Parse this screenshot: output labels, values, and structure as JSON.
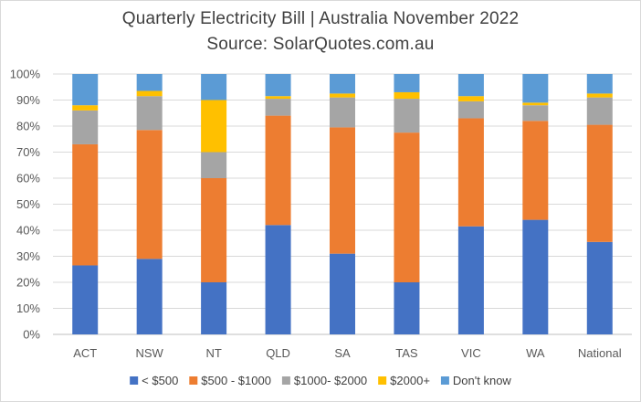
{
  "chart_data": {
    "type": "bar",
    "stacked": true,
    "title": "Quarterly Electricity Bill | Australia November 2022",
    "subtitle": "Source: SolarQuotes.com.au",
    "categories": [
      "ACT",
      "NSW",
      "NT",
      "QLD",
      "SA",
      "TAS",
      "VIC",
      "WA",
      "National"
    ],
    "y_ticks": [
      "0%",
      "10%",
      "20%",
      "30%",
      "40%",
      "50%",
      "60%",
      "70%",
      "80%",
      "90%",
      "100%"
    ],
    "ylim": [
      0,
      100
    ],
    "grid": true,
    "legend_position": "bottom",
    "series": [
      {
        "name": "< $500",
        "color": "#4472c4",
        "values": [
          26.5,
          29,
          20,
          42,
          31,
          20,
          41.5,
          44,
          35.5
        ]
      },
      {
        "name": "$500 - $1000",
        "color": "#ed7d31",
        "values": [
          46.5,
          49.5,
          40,
          42,
          48.5,
          57.5,
          41.5,
          38,
          45
        ]
      },
      {
        "name": "$1000- $2000",
        "color": "#a5a5a5",
        "values": [
          13,
          13,
          10,
          6.5,
          11.5,
          13,
          6.5,
          6,
          10.5
        ]
      },
      {
        "name": "$2000+",
        "color": "#ffc000",
        "values": [
          2,
          2,
          20,
          1,
          1.5,
          2.5,
          2,
          1,
          1.5
        ]
      },
      {
        "name": "Don't know",
        "color": "#5b9bd5",
        "values": [
          12,
          6.5,
          10,
          8.5,
          7.5,
          7,
          8.5,
          11,
          7.5
        ]
      }
    ]
  }
}
